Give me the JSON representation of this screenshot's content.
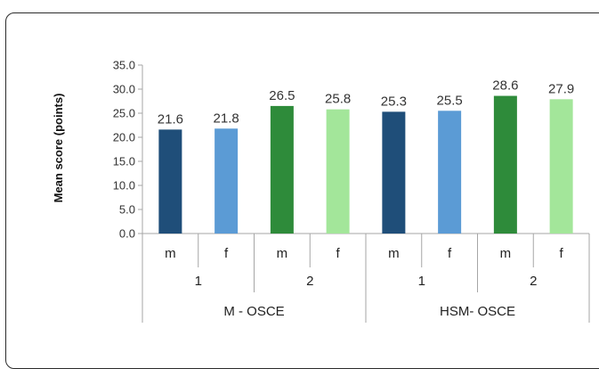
{
  "chart_data": {
    "type": "bar",
    "ylabel": "Mean score (points)",
    "ylim": [
      0,
      35
    ],
    "yticks": [
      "0.0",
      "5.0",
      "10.0",
      "15.0",
      "20.0",
      "25.0",
      "30.0",
      "35.0"
    ],
    "grid": false,
    "categories": [
      {
        "group": "M - OSCE",
        "sub": "1",
        "sex": "m",
        "value": 21.6,
        "label": "21.6",
        "color": "#1f4e79"
      },
      {
        "group": "M - OSCE",
        "sub": "1",
        "sex": "f",
        "value": 21.8,
        "label": "21.8",
        "color": "#5b9bd5"
      },
      {
        "group": "M - OSCE",
        "sub": "2",
        "sex": "m",
        "value": 26.5,
        "label": "26.5",
        "color": "#2e8b3a"
      },
      {
        "group": "M - OSCE",
        "sub": "2",
        "sex": "f",
        "value": 25.8,
        "label": "25.8",
        "color": "#a3e69a"
      },
      {
        "group": "HSM- OSCE",
        "sub": "1",
        "sex": "m",
        "value": 25.3,
        "label": "25.3",
        "color": "#1f4e79"
      },
      {
        "group": "HSM- OSCE",
        "sub": "1",
        "sex": "f",
        "value": 25.5,
        "label": "25.5",
        "color": "#5b9bd5"
      },
      {
        "group": "HSM- OSCE",
        "sub": "2",
        "sex": "m",
        "value": 28.6,
        "label": "28.6",
        "color": "#2e8b3a"
      },
      {
        "group": "HSM- OSCE",
        "sub": "2",
        "sex": "f",
        "value": 27.9,
        "label": "27.9",
        "color": "#a3e69a"
      }
    ],
    "level2": [
      "1",
      "2",
      "1",
      "2"
    ],
    "level3": [
      "M - OSCE",
      "HSM- OSCE"
    ]
  }
}
